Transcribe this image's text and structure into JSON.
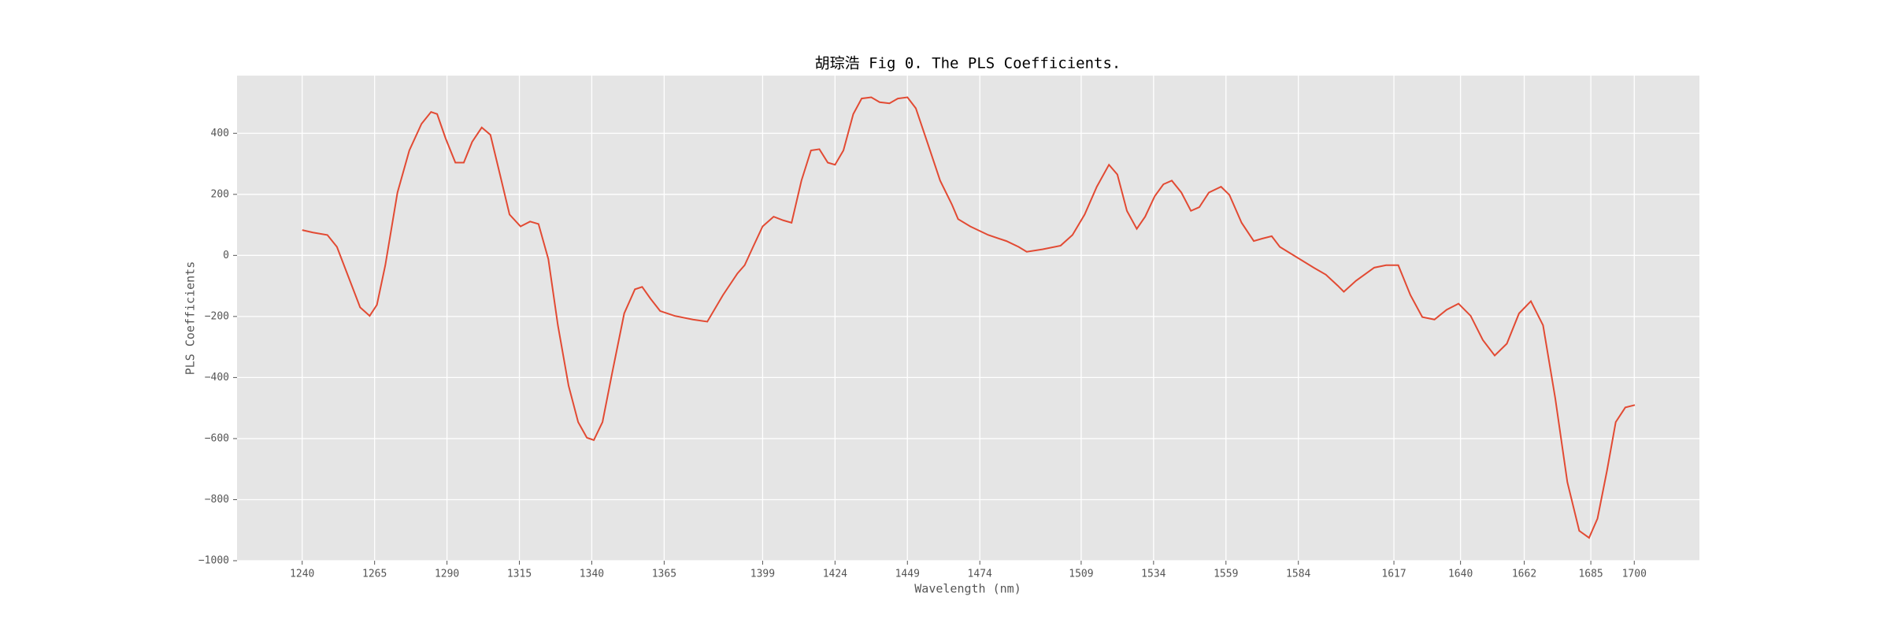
{
  "chart_data": {
    "type": "line",
    "title": "胡琮浩 Fig 0. The PLS Coefficients.",
    "xlabel": "Wavelength (nm)",
    "ylabel": "PLS Coefficients",
    "x": [
      1240,
      1243.7,
      1248.7,
      1252,
      1256,
      1260,
      1263.3,
      1265.8,
      1268.7,
      1272.9,
      1277,
      1281.2,
      1284.5,
      1286.6,
      1289.5,
      1292.9,
      1295.8,
      1298.7,
      1302,
      1305,
      1308.3,
      1311.6,
      1315.4,
      1318.7,
      1321.6,
      1325,
      1328.3,
      1332,
      1335.3,
      1338.3,
      1340.7,
      1343.7,
      1347,
      1351.2,
      1354.9,
      1357.4,
      1360.3,
      1363.6,
      1368.6,
      1374.9,
      1379.9,
      1385.3,
      1390.3,
      1392.8,
      1395.7,
      1399,
      1402.8,
      1406.1,
      1409,
      1412.4,
      1415.7,
      1418.6,
      1421.5,
      1424,
      1426.9,
      1430.3,
      1433.2,
      1436.5,
      1439.4,
      1442.8,
      1445.7,
      1449,
      1451.9,
      1456.1,
      1460.3,
      1464.4,
      1466.5,
      1470.7,
      1476.9,
      1483.2,
      1487.4,
      1490.2,
      1495.6,
      1501.9,
      1506,
      1510.2,
      1514.4,
      1518.6,
      1521.5,
      1524.8,
      1528.2,
      1531.1,
      1534.4,
      1537.4,
      1540.3,
      1543.6,
      1546.9,
      1549.8,
      1553.1,
      1557.3,
      1560.2,
      1564.4,
      1568.6,
      1571.5,
      1574.8,
      1577.6,
      1583.1,
      1589.3,
      1593.5,
      1597.6,
      1599.7,
      1603.9,
      1610.2,
      1614.3,
      1618.5,
      1622.7,
      1626.8,
      1631,
      1635.2,
      1639.3,
      1643.5,
      1647.7,
      1651.8,
      1656,
      1660.2,
      1664.3,
      1668.5,
      1672.7,
      1676.9,
      1681,
      1684.4,
      1687.3,
      1690.6,
      1693.6,
      1696.9,
      1700.2
    ],
    "series": [
      {
        "name": "PLS Coefficients",
        "color": "#e24a33",
        "values": [
          83,
          75,
          67,
          28,
          -71,
          -170,
          -198,
          -162,
          -32,
          206,
          344,
          431,
          470,
          463,
          384,
          304,
          304,
          372,
          419,
          395,
          265,
          134,
          95,
          111,
          103,
          -12,
          -229,
          -427,
          -546,
          -597,
          -605,
          -546,
          -387,
          -190,
          -111,
          -103,
          -142,
          -182,
          -198,
          -210,
          -217,
          -130,
          -59,
          -32,
          28,
          95,
          127,
          115,
          107,
          245,
          344,
          348,
          304,
          297,
          344,
          463,
          514,
          518,
          502,
          498,
          514,
          518,
          482,
          364,
          245,
          166,
          119,
          95,
          67,
          47,
          28,
          12,
          20,
          32,
          67,
          134,
          225,
          297,
          265,
          146,
          87,
          127,
          194,
          233,
          245,
          206,
          146,
          158,
          206,
          225,
          198,
          107,
          47,
          55,
          63,
          28,
          -4,
          -40,
          -63,
          -99,
          -119,
          -83,
          -40,
          -32,
          -32,
          -130,
          -202,
          -210,
          -178,
          -158,
          -198,
          -277,
          -328,
          -289,
          -190,
          -150,
          -229,
          -467,
          -743,
          -902,
          -925,
          -862,
          -704,
          -546,
          -498,
          -490
        ]
      }
    ],
    "xlim": [
      1217.5,
      1722.5
    ],
    "ylim": [
      -1000,
      589
    ],
    "xticks": [
      1240,
      1265,
      1290,
      1315,
      1340,
      1365,
      1399,
      1424,
      1449,
      1474,
      1509,
      1534,
      1559,
      1584,
      1617,
      1640,
      1662,
      1685,
      1700
    ],
    "yticks": [
      {
        "value": -1000,
        "label": "−1000"
      },
      {
        "value": -800,
        "label": "−800"
      },
      {
        "value": -600,
        "label": "−600"
      },
      {
        "value": -400,
        "label": "−400"
      },
      {
        "value": -200,
        "label": "−200"
      },
      0,
      200,
      400
    ],
    "grid": true
  }
}
